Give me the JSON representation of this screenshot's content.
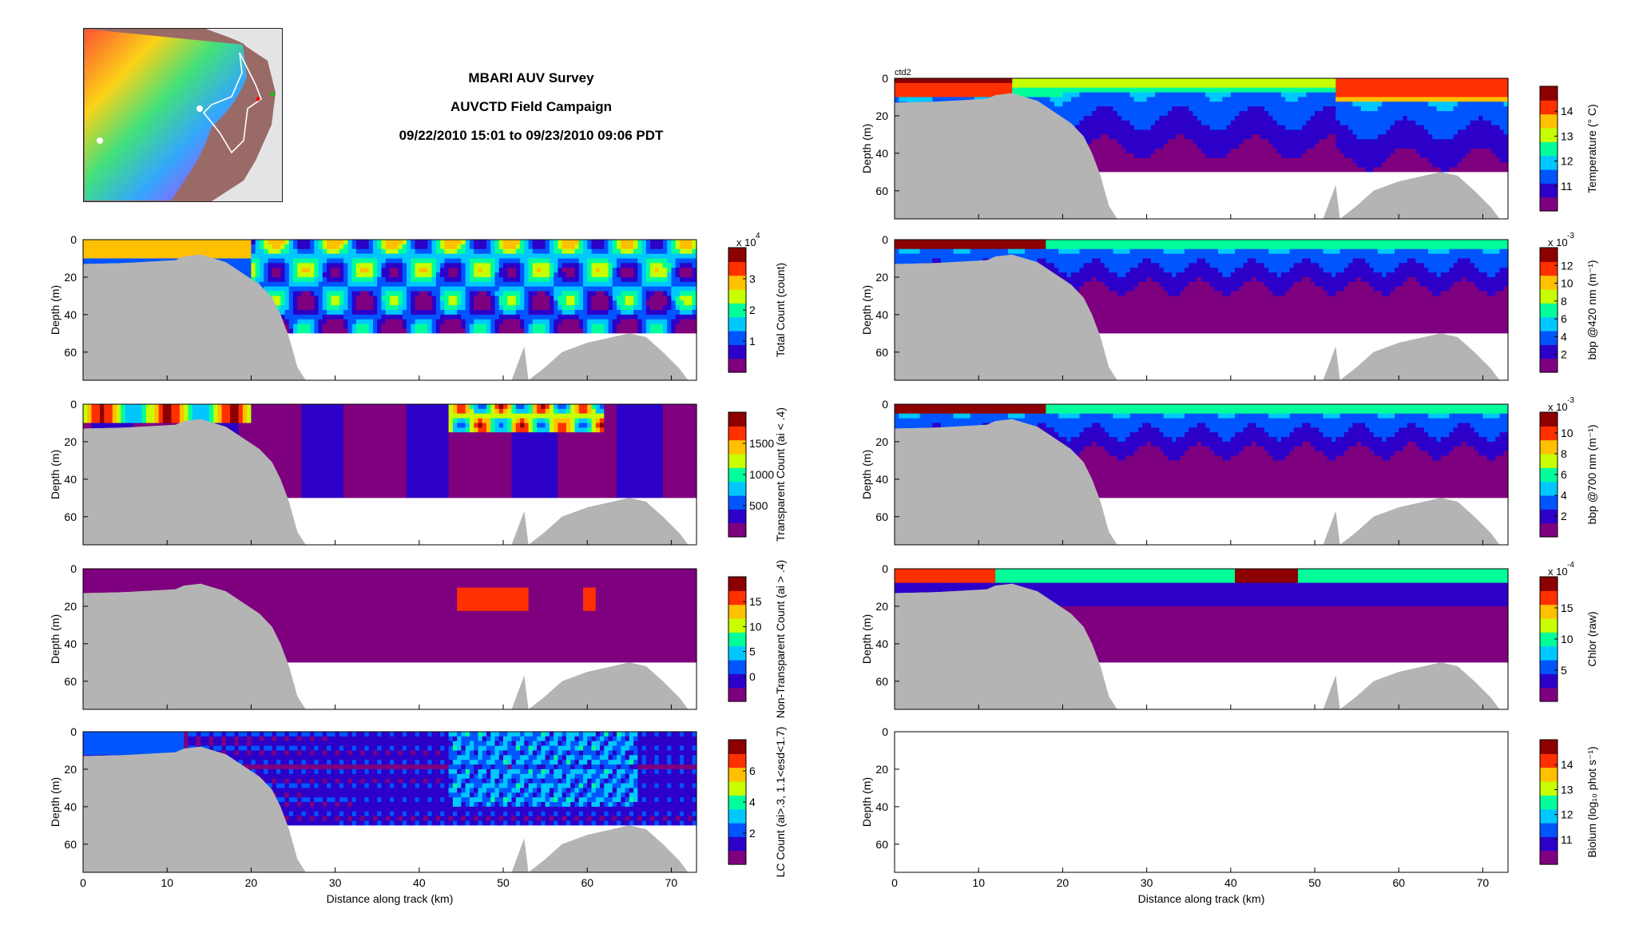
{
  "figure": {
    "title_lines": [
      "MBARI AUV Survey",
      "AUVCTD Field Campaign",
      "09/22/2010 15:01 to 09/23/2010 09:06 PDT"
    ],
    "corner_label": "ctd2",
    "map": {
      "description_icon": "survey-track-map"
    }
  },
  "colors": {
    "bathymetry": "#b4b4b4",
    "colormap": [
      "#7f007f",
      "#2c00c8",
      "#0055ff",
      "#00c8ff",
      "#00ff9a",
      "#c8ff00",
      "#ffc000",
      "#ff3000",
      "#8c0000"
    ]
  },
  "chart_data": [
    {
      "type": "heatmap",
      "id": "total-count",
      "xlabel": "",
      "ylabel": "Depth (m)",
      "xlim": [
        0,
        73
      ],
      "ylim": [
        0,
        75
      ],
      "y_reversed": true,
      "xticks": [],
      "yticks": [
        0,
        20,
        40,
        60
      ],
      "colorbar": {
        "label": "Total Count (count)",
        "ticks": [
          "1",
          "2",
          "3"
        ],
        "exponent": "x 10",
        "power": "4"
      }
    },
    {
      "type": "heatmap",
      "id": "transparent-count",
      "xlabel": "",
      "ylabel": "Depth (m)",
      "xlim": [
        0,
        73
      ],
      "ylim": [
        0,
        75
      ],
      "y_reversed": true,
      "xticks": [],
      "yticks": [
        0,
        20,
        40,
        60
      ],
      "colorbar": {
        "label": "Transparent Count (ai < .4)",
        "ticks": [
          "500",
          "1000",
          "1500"
        ]
      }
    },
    {
      "type": "heatmap",
      "id": "non-transparent-count",
      "xlabel": "",
      "ylabel": "Depth (m)",
      "xlim": [
        0,
        73
      ],
      "ylim": [
        0,
        75
      ],
      "y_reversed": true,
      "xticks": [],
      "yticks": [
        0,
        20,
        40,
        60
      ],
      "colorbar": {
        "label": "Non-Transparent Count (ai > .4)",
        "ticks": [
          "0",
          "5",
          "10",
          "15"
        ]
      }
    },
    {
      "type": "heatmap",
      "id": "lc-count",
      "xlabel": "Distance along track (km)",
      "ylabel": "Depth (m)",
      "xlim": [
        0,
        73
      ],
      "ylim": [
        0,
        75
      ],
      "y_reversed": true,
      "xticks": [
        0,
        10,
        20,
        30,
        40,
        50,
        60,
        70
      ],
      "yticks": [
        0,
        20,
        40,
        60
      ],
      "colorbar": {
        "label": "LC Count (ai>.3, 1.1<esd<1.7)",
        "ticks": [
          "2",
          "4",
          "6"
        ]
      }
    },
    {
      "type": "heatmap",
      "id": "temperature",
      "xlabel": "",
      "ylabel": "Depth (m)",
      "xlim": [
        0,
        73
      ],
      "ylim": [
        0,
        75
      ],
      "y_reversed": true,
      "xticks": [],
      "yticks": [
        0,
        20,
        40,
        60
      ],
      "colorbar": {
        "label": "Temperature (° C)",
        "ticks": [
          "11",
          "12",
          "13",
          "14"
        ]
      }
    },
    {
      "type": "heatmap",
      "id": "bbp-420",
      "xlabel": "",
      "ylabel": "Depth (m)",
      "xlim": [
        0,
        73
      ],
      "ylim": [
        0,
        75
      ],
      "y_reversed": true,
      "xticks": [],
      "yticks": [
        0,
        20,
        40,
        60
      ],
      "colorbar": {
        "label": "bbp @420 nm (m⁻¹)",
        "ticks": [
          "2",
          "4",
          "6",
          "8",
          "10",
          "12"
        ],
        "exponent": "x 10",
        "power": "-3"
      }
    },
    {
      "type": "heatmap",
      "id": "bbp-700",
      "xlabel": "",
      "ylabel": "Depth (m)",
      "xlim": [
        0,
        73
      ],
      "ylim": [
        0,
        75
      ],
      "y_reversed": true,
      "xticks": [],
      "yticks": [
        0,
        20,
        40,
        60
      ],
      "colorbar": {
        "label": "bbp @700 nm (m⁻¹)",
        "ticks": [
          "2",
          "4",
          "6",
          "8",
          "10"
        ],
        "exponent": "x 10",
        "power": "-3"
      }
    },
    {
      "type": "heatmap",
      "id": "chlor",
      "xlabel": "",
      "ylabel": "Depth (m)",
      "xlim": [
        0,
        73
      ],
      "ylim": [
        0,
        75
      ],
      "y_reversed": true,
      "xticks": [],
      "yticks": [
        0,
        20,
        40,
        60
      ],
      "colorbar": {
        "label": "Chlor (raw)",
        "ticks": [
          "5",
          "10",
          "15"
        ],
        "exponent": "x 10",
        "power": "-4"
      }
    },
    {
      "type": "heatmap",
      "id": "biolum",
      "xlabel": "Distance along track (km)",
      "ylabel": "Depth (m)",
      "xlim": [
        0,
        73
      ],
      "ylim": [
        0,
        75
      ],
      "y_reversed": true,
      "xticks": [
        0,
        10,
        20,
        30,
        40,
        50,
        60,
        70
      ],
      "yticks": [
        0,
        20,
        40,
        60
      ],
      "colorbar": {
        "label": "Biolum (log₁₀ phot s⁻¹)",
        "ticks": [
          "11",
          "12",
          "13",
          "14"
        ]
      },
      "empty": true
    }
  ]
}
